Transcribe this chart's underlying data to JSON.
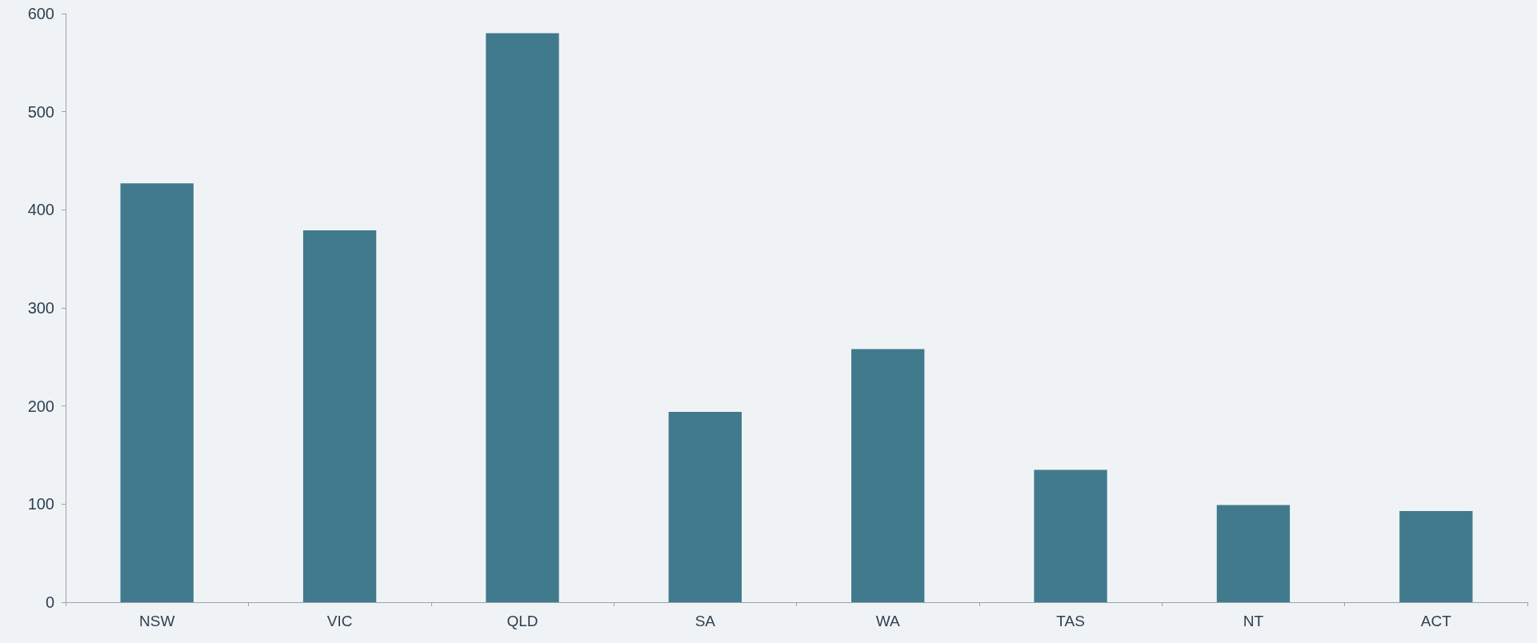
{
  "chart_data": {
    "type": "bar",
    "categories": [
      "NSW",
      "VIC",
      "QLD",
      "SA",
      "WA",
      "TAS",
      "NT",
      "ACT"
    ],
    "values": [
      427,
      379,
      580,
      194,
      258,
      135,
      99,
      93
    ],
    "color": "#417a8d",
    "ylim": [
      0,
      600
    ],
    "yticks": [
      0,
      100,
      200,
      300,
      400,
      500,
      600
    ],
    "grid": false
  }
}
